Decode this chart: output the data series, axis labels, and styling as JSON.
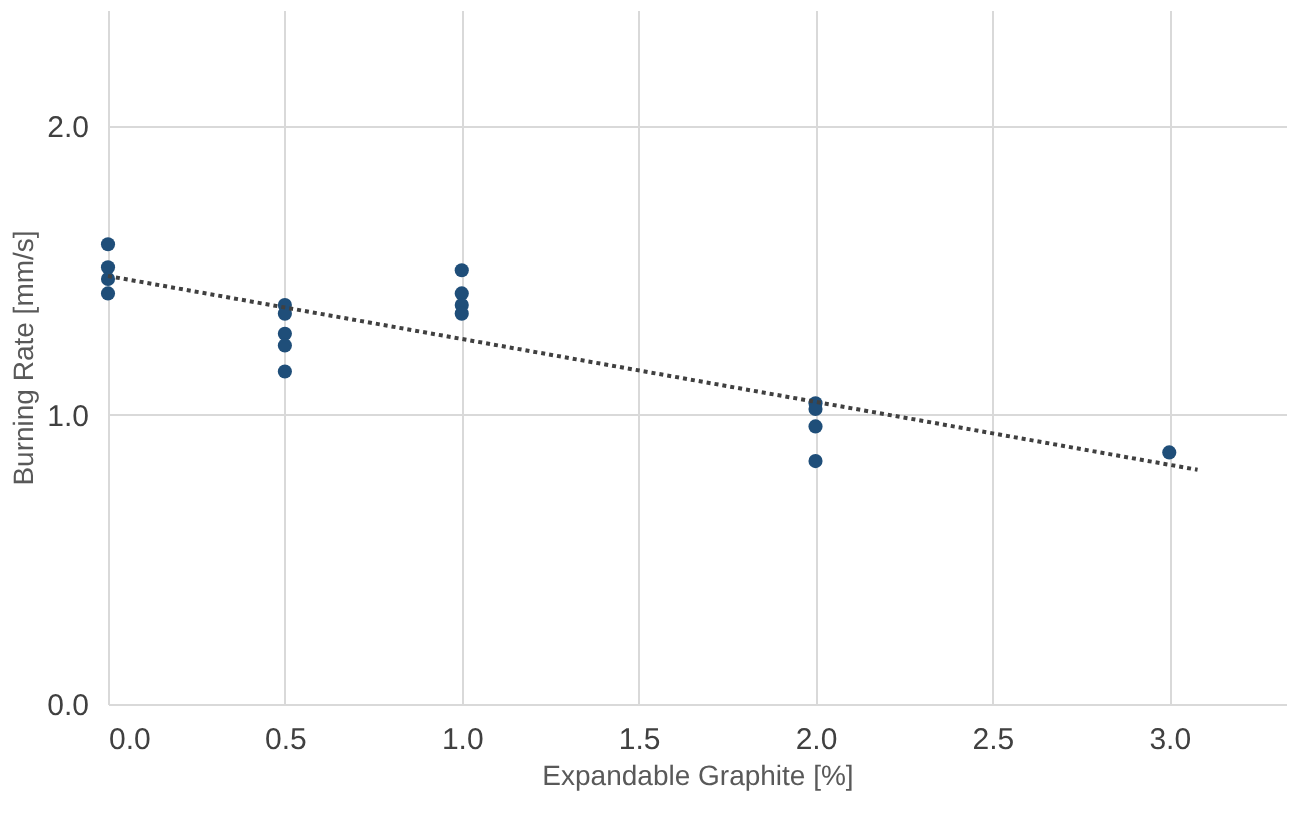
{
  "chart_data": {
    "type": "scatter",
    "xlabel": "Expandable Graphite [%]",
    "ylabel": "Burning Rate [mm/s]",
    "xlim": [
      0,
      3.33
    ],
    "ylim": [
      0,
      2.4
    ],
    "xticks": [
      {
        "value": 0,
        "label": "0.0"
      },
      0.5,
      {
        "value": 1,
        "label": "1.0"
      },
      1.5,
      {
        "value": 2,
        "label": "2.0"
      },
      2.5,
      {
        "value": 3,
        "label": "3.0"
      }
    ],
    "yticks": [
      {
        "value": 0,
        "label": "0.0"
      },
      {
        "value": 1,
        "label": "1.0"
      },
      {
        "value": 2,
        "label": "2.0"
      }
    ],
    "grid": true,
    "series": [
      {
        "color": "#1f4e79",
        "marker": "circle",
        "x": [
          0,
          0,
          0,
          0,
          0.5,
          0.5,
          0.5,
          0.5,
          0.5,
          1,
          1,
          1,
          1,
          2,
          2,
          2,
          2,
          3
        ],
        "values": [
          1.59,
          1.51,
          1.47,
          1.42,
          1.38,
          1.35,
          1.28,
          1.24,
          1.15,
          1.5,
          1.42,
          1.38,
          1.35,
          1.04,
          1.02,
          0.96,
          0.84,
          0.87
        ]
      },
      {
        "type": "line",
        "color": "#404040",
        "line_style": "dotted",
        "marker": "none",
        "x": [
          0,
          3.08
        ],
        "values": [
          1.48,
          0.81
        ]
      }
    ]
  }
}
